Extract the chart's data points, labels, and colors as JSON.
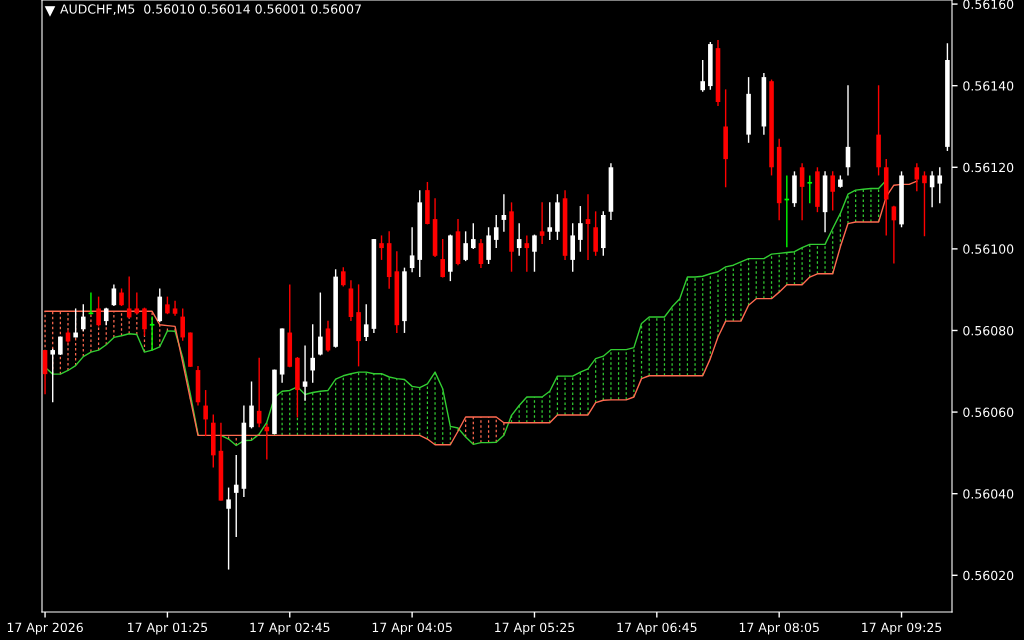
{
  "chart_data": {
    "type": "candlestick",
    "annotations": [
      "AUDCHF,M5  0.56010 0.56014 0.56001 0.56007"
    ],
    "x": [
      "2026-04-17T00:05",
      "2026-04-17T00:10",
      "2026-04-17T00:15",
      "2026-04-17T00:20",
      "2026-04-17T00:25",
      "2026-04-17T00:30",
      "2026-04-17T00:35",
      "2026-04-17T00:40",
      "2026-04-17T00:45",
      "2026-04-17T00:50",
      "2026-04-17T00:55",
      "2026-04-17T01:00",
      "2026-04-17T01:05",
      "2026-04-17T01:10",
      "2026-04-17T01:15",
      "2026-04-17T01:20",
      "2026-04-17T01:25",
      "2026-04-17T01:30",
      "2026-04-17T01:35",
      "2026-04-17T01:40",
      "2026-04-17T01:45",
      "2026-04-17T01:50",
      "2026-04-17T01:55",
      "2026-04-17T02:00",
      "2026-04-17T02:05",
      "2026-04-17T02:10",
      "2026-04-17T02:15",
      "2026-04-17T02:20",
      "2026-04-17T02:25",
      "2026-04-17T02:30",
      "2026-04-17T02:35",
      "2026-04-17T02:40",
      "2026-04-17T02:45",
      "2026-04-17T02:50",
      "2026-04-17T02:55",
      "2026-04-17T03:00",
      "2026-04-17T03:05",
      "2026-04-17T03:10",
      "2026-04-17T03:15",
      "2026-04-17T03:20",
      "2026-04-17T03:25",
      "2026-04-17T03:30",
      "2026-04-17T03:35",
      "2026-04-17T03:40",
      "2026-04-17T03:45",
      "2026-04-17T03:50",
      "2026-04-17T03:55",
      "2026-04-17T04:00",
      "2026-04-17T04:05",
      "2026-04-17T04:10",
      "2026-04-17T04:15",
      "2026-04-17T04:20",
      "2026-04-17T04:25",
      "2026-04-17T04:30",
      "2026-04-17T04:35",
      "2026-04-17T04:40",
      "2026-04-17T04:45",
      "2026-04-17T04:50",
      "2026-04-17T04:55",
      "2026-04-17T05:00",
      "2026-04-17T05:05",
      "2026-04-17T05:10",
      "2026-04-17T05:15",
      "2026-04-17T05:20",
      "2026-04-17T05:25",
      "2026-04-17T05:30",
      "2026-04-17T05:35",
      "2026-04-17T05:40",
      "2026-04-17T05:45",
      "2026-04-17T05:50",
      "2026-04-17T05:55",
      "2026-04-17T06:00",
      "2026-04-17T06:05",
      "2026-04-17T06:10",
      "2026-04-17T06:15",
      "2026-04-17T06:20",
      "2026-04-17T06:25",
      "2026-04-17T06:30",
      "2026-04-17T06:35",
      "2026-04-17T06:40",
      "2026-04-17T06:45",
      "2026-04-17T06:50",
      "2026-04-17T06:55",
      "2026-04-17T07:00",
      "2026-04-17T07:05",
      "2026-04-17T07:10",
      "2026-04-17T07:15",
      "2026-04-17T07:20",
      "2026-04-17T07:25",
      "2026-04-17T07:30",
      "2026-04-17T07:35",
      "2026-04-17T07:40",
      "2026-04-17T07:45",
      "2026-04-17T07:50",
      "2026-04-17T07:55",
      "2026-04-17T08:00",
      "2026-04-17T08:05",
      "2026-04-17T08:10",
      "2026-04-17T08:15",
      "2026-04-17T08:20",
      "2026-04-17T08:25",
      "2026-04-17T08:30",
      "2026-04-17T08:35",
      "2026-04-17T08:40",
      "2026-04-17T08:45",
      "2026-04-17T08:50",
      "2026-04-17T08:55",
      "2026-04-17T09:00",
      "2026-04-17T09:05",
      "2026-04-17T09:10",
      "2026-04-17T09:15",
      "2026-04-17T09:20",
      "2026-04-17T09:25",
      "2026-04-17T09:30",
      "2026-04-17T09:35",
      "2026-04-17T09:40",
      "2026-04-17T09:45",
      "2026-04-17T09:50",
      "2026-04-17T09:55"
    ],
    "ohlc": [
      [
        0.560752,
        0.560752,
        0.560644,
        0.560693
      ],
      [
        0.560741,
        0.560755,
        0.560624,
        0.560752
      ],
      [
        0.560741,
        0.560785,
        0.56074,
        0.560785
      ],
      [
        0.560795,
        0.5608,
        0.56077,
        0.560773
      ],
      [
        0.560783,
        0.560854,
        0.560783,
        0.560795
      ],
      [
        0.560803,
        0.560864,
        0.560798,
        0.560834
      ],
      [
        0.560842,
        0.560893,
        0.56084,
        0.560842
      ],
      [
        0.560854,
        0.560883,
        0.56081,
        0.560813
      ],
      [
        0.560823,
        0.560856,
        0.560813,
        0.560854
      ],
      [
        0.560862,
        0.560913,
        0.56086,
        0.560903
      ],
      [
        0.560893,
        0.560903,
        0.56086,
        0.560862
      ],
      [
        0.560854,
        0.560932,
        0.56083,
        0.560832
      ],
      [
        0.560854,
        0.560893,
        0.56084,
        0.560842
      ],
      [
        0.560854,
        0.560856,
        0.560787,
        0.560803
      ],
      [
        0.560814,
        0.560834,
        0.560751,
        0.560814
      ],
      [
        0.560823,
        0.560903,
        0.56082,
        0.560883
      ],
      [
        0.560864,
        0.560883,
        0.56084,
        0.560842
      ],
      [
        0.560854,
        0.560873,
        0.560836,
        0.560841
      ],
      [
        0.560834,
        0.560854,
        0.560775,
        0.560783
      ],
      [
        0.560795,
        0.560795,
        0.560711,
        0.560711
      ],
      [
        0.560703,
        0.560713,
        0.560616,
        0.560624
      ],
      [
        0.560616,
        0.560654,
        0.560541,
        0.560582
      ],
      [
        0.560574,
        0.560594,
        0.560464,
        0.560494
      ],
      [
        0.560505,
        0.560574,
        0.560383,
        0.560383
      ],
      [
        0.560363,
        0.560415,
        0.560214,
        0.560386
      ],
      [
        0.560402,
        0.560495,
        0.560294,
        0.560422
      ],
      [
        0.560412,
        0.560616,
        0.560392,
        0.560574
      ],
      [
        0.560563,
        0.560675,
        0.56056,
        0.560616
      ],
      [
        0.560603,
        0.560733,
        0.560563,
        0.560572
      ],
      [
        0.560564,
        0.560571,
        0.560484,
        0.560553
      ],
      [
        0.560546,
        0.560704,
        0.560546,
        0.560704
      ],
      [
        0.560692,
        0.560805,
        0.560672,
        0.560805
      ],
      [
        0.560795,
        0.560913,
        0.56071,
        0.560711
      ],
      [
        0.560733,
        0.560735,
        0.560587,
        0.560654
      ],
      [
        0.560662,
        0.560763,
        0.560628,
        0.560675
      ],
      [
        0.560702,
        0.560815,
        0.560672,
        0.560733
      ],
      [
        0.560741,
        0.560893,
        0.560739,
        0.560785
      ],
      [
        0.560805,
        0.560824,
        0.560748,
        0.560751
      ],
      [
        0.56076,
        0.56095,
        0.560758,
        0.560932
      ],
      [
        0.560945,
        0.560955,
        0.560908,
        0.560911
      ],
      [
        0.560903,
        0.560923,
        0.560823,
        0.560833
      ],
      [
        0.560845,
        0.560913,
        0.560712,
        0.560774
      ],
      [
        0.560784,
        0.560864,
        0.560774,
        0.560815
      ],
      [
        0.560804,
        0.561024,
        0.560794,
        0.561024
      ],
      [
        0.561014,
        0.561033,
        0.560973,
        0.561002
      ],
      [
        0.561014,
        0.561043,
        0.560902,
        0.560931
      ],
      [
        0.560945,
        0.560994,
        0.560794,
        0.560813
      ],
      [
        0.560823,
        0.560954,
        0.560794,
        0.560945
      ],
      [
        0.560953,
        0.561053,
        0.560943,
        0.560984
      ],
      [
        0.560973,
        0.561144,
        0.560931,
        0.561114
      ],
      [
        0.561144,
        0.561164,
        0.56106,
        0.561061
      ],
      [
        0.561073,
        0.561124,
        0.56098,
        0.560983
      ],
      [
        0.560975,
        0.561024,
        0.56093,
        0.560931
      ],
      [
        0.560944,
        0.561035,
        0.560921,
        0.561033
      ],
      [
        0.561043,
        0.561073,
        0.56096,
        0.560963
      ],
      [
        0.560973,
        0.561043,
        0.56097,
        0.561014
      ],
      [
        0.561002,
        0.561063,
        0.561,
        0.561024
      ],
      [
        0.561014,
        0.561024,
        0.560953,
        0.560963
      ],
      [
        0.560973,
        0.561053,
        0.560963,
        0.561033
      ],
      [
        0.561022,
        0.561083,
        0.561002,
        0.561053
      ],
      [
        0.561071,
        0.561134,
        0.561042,
        0.561083
      ],
      [
        0.561092,
        0.561114,
        0.560944,
        0.560993
      ],
      [
        0.561002,
        0.561063,
        0.560983,
        0.561024
      ],
      [
        0.561014,
        0.561033,
        0.560944,
        0.561002
      ],
      [
        0.560993,
        0.561035,
        0.560944,
        0.561033
      ],
      [
        0.561043,
        0.561114,
        0.561012,
        0.561032
      ],
      [
        0.561042,
        0.561114,
        0.561022,
        0.561053
      ],
      [
        0.561042,
        0.561134,
        0.561022,
        0.561114
      ],
      [
        0.561124,
        0.561144,
        0.560973,
        0.560983
      ],
      [
        0.560973,
        0.561063,
        0.560944,
        0.561033
      ],
      [
        0.561022,
        0.561105,
        0.560993,
        0.561063
      ],
      [
        0.561073,
        0.561134,
        0.560973,
        0.561061
      ],
      [
        0.561053,
        0.561092,
        0.560983,
        0.560993
      ],
      [
        0.561002,
        0.561092,
        0.560983,
        0.561083
      ],
      [
        0.561091,
        0.56121,
        0.561071,
        0.5612
      ],
      null,
      null,
      null,
      null,
      null,
      null,
      null,
      null,
      null,
      null,
      null,
      [
        0.561389,
        0.561463,
        0.561385,
        0.561411
      ],
      [
        0.561399,
        0.561507,
        0.56139,
        0.561502
      ],
      [
        0.561492,
        0.561512,
        0.56135,
        0.56136
      ],
      [
        0.5613,
        0.561391,
        0.561151,
        0.56122
      ],
      null,
      null,
      [
        0.56128,
        0.561421,
        0.56126,
        0.56138
      ],
      null,
      [
        0.5613,
        0.561431,
        0.56128,
        0.561421
      ],
      [
        0.561411,
        0.561415,
        0.56118,
        0.5612
      ],
      [
        0.56125,
        0.56127,
        0.56107,
        0.561112
      ],
      [
        0.561121,
        0.56118,
        0.561004,
        0.561121
      ],
      [
        0.561112,
        0.56119,
        0.561103,
        0.56118
      ],
      [
        0.5612,
        0.56121,
        0.56107,
        0.561152
      ],
      [
        0.561162,
        0.56118,
        0.561112,
        0.561162
      ],
      [
        0.56119,
        0.5612,
        0.56109,
        0.561103
      ],
      [
        0.56109,
        0.56119,
        0.561041,
        0.56118
      ],
      [
        0.56118,
        0.56119,
        0.561094,
        0.56114
      ],
      [
        0.561152,
        0.56118,
        0.56115,
        0.56117
      ],
      [
        0.5612,
        0.561401,
        0.56118,
        0.56125
      ],
      null,
      null,
      null,
      [
        0.56128,
        0.561401,
        0.56118,
        0.5612
      ],
      [
        0.5612,
        0.56122,
        0.561033,
        0.561121
      ],
      [
        0.561104,
        0.561106,
        0.560964,
        0.56107
      ],
      [
        0.56106,
        0.56119,
        0.561053,
        0.56118
      ],
      null,
      [
        0.5612,
        0.56121,
        0.561141,
        0.56117
      ],
      [
        0.56118,
        0.56119,
        0.561031,
        0.561161
      ],
      [
        0.561151,
        0.56119,
        0.561102,
        0.56118
      ],
      [
        0.56116,
        0.5612,
        0.561112,
        0.56118
      ],
      [
        0.56125,
        0.561504,
        0.56124,
        0.561463
      ]
    ],
    "colors": [
      "#ff0000",
      "#ffffff",
      "#ffffff",
      "#ff0000",
      "#ffffff",
      "#ffffff",
      "#00ff00",
      "#ff0000",
      "#ffffff",
      "#ffffff",
      "#ff0000",
      "#ff0000",
      "#ff0000",
      "#ff0000",
      "#00ff00",
      "#ffffff",
      "#ff0000",
      "#ff0000",
      "#ff0000",
      "#ff0000",
      "#ff0000",
      "#ff0000",
      "#ff0000",
      "#ff0000",
      "#ffffff",
      "#ffffff",
      "#ffffff",
      "#ffffff",
      "#ff0000",
      "#ff0000",
      "#ffffff",
      "#ffffff",
      "#ff0000",
      "#ff0000",
      "#ffffff",
      "#ffffff",
      "#ffffff",
      "#ff0000",
      "#ffffff",
      "#ff0000",
      "#ff0000",
      "#ff0000",
      "#ffffff",
      "#ffffff",
      "#ff0000",
      "#ff0000",
      "#ff0000",
      "#ffffff",
      "#ffffff",
      "#ffffff",
      "#ff0000",
      "#ff0000",
      "#ff0000",
      "#ffffff",
      "#ff0000",
      "#ffffff",
      "#ffffff",
      "#ff0000",
      "#ffffff",
      "#ffffff",
      "#ffffff",
      "#ff0000",
      "#ffffff",
      "#ff0000",
      "#ffffff",
      "#ff0000",
      "#ffffff",
      "#ffffff",
      "#ff0000",
      "#ffffff",
      "#ffffff",
      "#ff0000",
      "#ff0000",
      "#ffffff",
      "#ffffff",
      null,
      null,
      null,
      null,
      null,
      null,
      null,
      null,
      null,
      null,
      null,
      "#ffffff",
      "#ffffff",
      "#ff0000",
      "#ff0000",
      null,
      null,
      "#ffffff",
      null,
      "#ffffff",
      "#ff0000",
      "#ff0000",
      "#00ff00",
      "#ffffff",
      "#ff0000",
      "#00ff00",
      "#ff0000",
      "#ffffff",
      "#ff0000",
      "#ffffff",
      "#ffffff",
      null,
      null,
      null,
      "#ff0000",
      "#ff0000",
      "#ff0000",
      "#ffffff",
      null,
      "#ff0000",
      "#ff0000",
      "#ffffff",
      "#ffffff",
      "#ffffff"
    ],
    "series": [
      {
        "type": "line",
        "color": "#32cd32",
        "values": [
          0.56071,
          0.560693,
          0.560693,
          0.560702,
          0.560714,
          0.560736,
          0.560747,
          0.560752,
          0.560765,
          0.560783,
          0.560787,
          0.560792,
          0.56079,
          0.560747,
          0.560752,
          0.56076,
          0.560799,
          0.560798,
          0.560734,
          0.560644,
          0.560546,
          null,
          null,
          0.560543,
          0.560534,
          0.560518,
          0.56053,
          0.560531,
          0.560546,
          0.560575,
          0.560636,
          0.560651,
          0.560653,
          0.560662,
          0.560643,
          0.560648,
          0.560651,
          0.560653,
          0.560681,
          0.560689,
          0.560694,
          0.560698,
          0.560698,
          0.560694,
          0.560694,
          0.560686,
          0.560682,
          0.56068,
          0.560663,
          0.56066,
          0.560669,
          0.560698,
          0.560657,
          0.560565,
          0.560561,
          0.560539,
          0.560521,
          0.560525,
          0.560525,
          0.560526,
          0.560543,
          0.560592,
          0.560616,
          0.560637,
          0.560637,
          0.560637,
          0.560651,
          0.560688,
          0.560688,
          0.560688,
          0.560698,
          0.560706,
          0.560731,
          0.560737,
          0.560753,
          0.560753,
          0.560753,
          0.560758,
          0.560817,
          0.560833,
          0.560833,
          0.560833,
          0.560858,
          0.560878,
          0.560931,
          0.560931,
          0.560933,
          0.560939,
          0.560944,
          0.560956,
          0.56096,
          0.560968,
          0.560976,
          0.560976,
          0.560976,
          0.560987,
          0.560989,
          0.560991,
          0.560993,
          0.561003,
          0.561011,
          0.561011,
          0.561011,
          0.56105,
          0.561087,
          0.561134,
          0.561144,
          0.561146,
          0.561148,
          0.561148,
          0.561168,
          null,
          null,
          null,
          null,
          null,
          null,
          null,
          null
        ]
      },
      {
        "type": "line",
        "color": "#ff6a50",
        "values": [
          0.560847,
          0.560847,
          0.560847,
          0.560847,
          0.560847,
          0.560847,
          0.560847,
          0.560847,
          0.560847,
          0.560847,
          0.560847,
          0.560847,
          0.560847,
          0.560847,
          0.560847,
          0.560814,
          0.560812,
          0.56081,
          0.560722,
          0.560632,
          0.560543,
          0.560543,
          0.560543,
          0.560543,
          0.560543,
          0.560543,
          0.560543,
          0.560543,
          0.560543,
          0.560543,
          0.560543,
          0.560543,
          0.560543,
          0.560543,
          0.560543,
          0.560543,
          0.560543,
          0.560543,
          0.560543,
          0.560543,
          0.560543,
          0.560543,
          0.560543,
          0.560543,
          0.560543,
          0.560543,
          0.560543,
          0.560543,
          0.560543,
          0.560543,
          0.560534,
          0.56052,
          0.56052,
          0.56052,
          0.560553,
          0.560588,
          0.560588,
          0.560588,
          0.560588,
          0.560588,
          0.560574,
          0.560574,
          0.560574,
          0.560574,
          0.560574,
          0.560574,
          0.560574,
          0.560593,
          0.560593,
          0.560593,
          0.560593,
          0.560593,
          0.560623,
          0.560629,
          0.56063,
          0.56063,
          0.56063,
          0.560637,
          0.560682,
          0.560689,
          0.560689,
          0.560689,
          0.560689,
          0.560689,
          0.560689,
          0.560689,
          0.560689,
          0.560731,
          0.560784,
          0.560823,
          0.560823,
          0.560823,
          0.560862,
          0.560878,
          0.560878,
          0.560878,
          0.560894,
          0.560912,
          0.560912,
          0.560912,
          0.560931,
          0.560939,
          0.560939,
          0.560939,
          0.561005,
          0.561062,
          0.561066,
          0.561066,
          0.561066,
          0.561066,
          0.561128,
          0.561156,
          0.561158,
          0.561158,
          0.561166,
          null,
          null,
          null,
          null
        ]
      }
    ],
    "xlim": [
      "2026-04-17T00:03",
      "2026-04-17T09:58"
    ],
    "ylim": [
      0.56011,
      0.56161
    ],
    "xticks": [
      {
        "value": "2026-04-17T00:05",
        "label": "17 Apr 2026"
      },
      {
        "value": "2026-04-17T01:25",
        "label": "17 Apr 01:25"
      },
      {
        "value": "2026-04-17T02:45",
        "label": "17 Apr 02:45"
      },
      {
        "value": "2026-04-17T04:05",
        "label": "17 Apr 04:05"
      },
      {
        "value": "2026-04-17T05:25",
        "label": "17 Apr 05:25"
      },
      {
        "value": "2026-04-17T06:45",
        "label": "17 Apr 06:45"
      },
      {
        "value": "2026-04-17T08:05",
        "label": "17 Apr 08:05"
      },
      {
        "value": "2026-04-17T09:25",
        "label": "17 Apr 09:25"
      }
    ],
    "yticks": [
      {
        "value": 0.5602,
        "label": "0.56020"
      },
      {
        "value": 0.5604,
        "label": "0.56040"
      },
      {
        "value": 0.5606,
        "label": "0.56060"
      },
      {
        "value": 0.5608,
        "label": "0.56080"
      },
      {
        "value": 0.561,
        "label": "0.56100"
      },
      {
        "value": 0.5612,
        "label": "0.56120"
      },
      {
        "value": 0.5614,
        "label": "0.56140"
      },
      {
        "value": 0.5616,
        "label": "0.56160"
      }
    ]
  }
}
